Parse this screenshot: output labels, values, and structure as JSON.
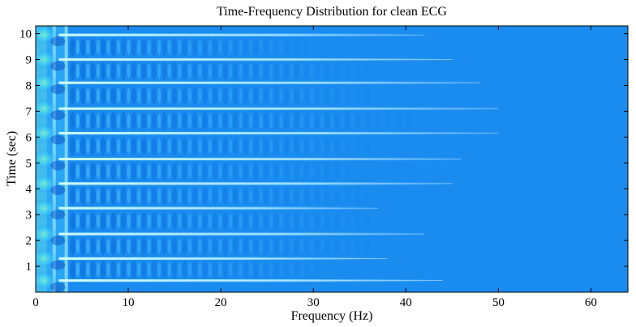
{
  "chart_data": {
    "type": "heatmap",
    "title": "Time-Frequency Distribution for clean ECG",
    "xlabel": "Frequency (Hz)",
    "ylabel": "Time (sec)",
    "xlim": [
      0,
      64
    ],
    "ylim": [
      0,
      10.3
    ],
    "xticks": [
      0,
      10,
      20,
      30,
      40,
      50,
      60
    ],
    "yticks": [
      1,
      2,
      3,
      4,
      5,
      6,
      7,
      8,
      9,
      10
    ],
    "grid": false,
    "colormap": "jet",
    "background_color": "#1a8cf0",
    "ridge_color": "#9fe8ff",
    "interference_color": "#0a66d8",
    "ecg_beat_times_sec": [
      0.45,
      1.3,
      2.25,
      3.25,
      4.2,
      5.15,
      6.15,
      7.1,
      8.1,
      9.0,
      9.95
    ],
    "ridge_extent_hz": [
      44,
      38,
      42,
      37,
      45,
      46,
      50,
      50,
      48,
      45,
      42
    ],
    "interference_extent_hz": [
      5,
      31,
      36,
      36,
      35,
      34,
      37,
      41,
      37,
      35,
      30
    ],
    "interference_period_hz": 1.1
  }
}
